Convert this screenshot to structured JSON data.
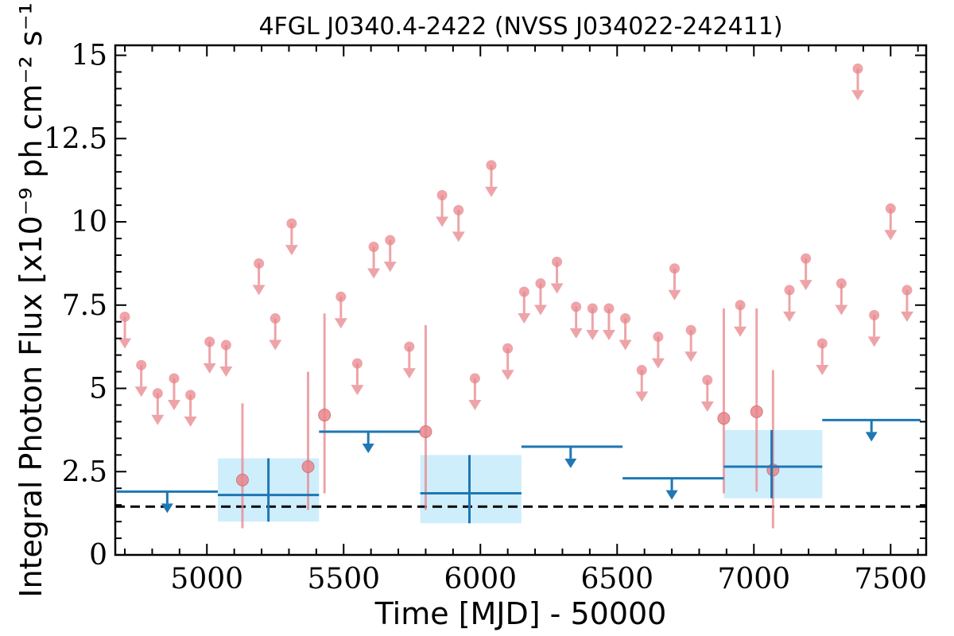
{
  "chart_data": {
    "type": "scatter",
    "title": "4FGL J0340.4-2422 (NVSS J034022-242411)",
    "xlabel": "Time [MJD] - 50000",
    "ylabel": "Integral Photon Flux [x10⁻⁹ ph cm⁻² s⁻¹]",
    "xlim": [
      4665,
      7630
    ],
    "ylim": [
      0,
      15.3
    ],
    "x_ticks": [
      5000,
      5500,
      6000,
      6500,
      7000,
      7500
    ],
    "x_tick_labels": [
      "5000",
      "5500",
      "6000",
      "6500",
      "7000",
      "7500"
    ],
    "y_ticks": [
      0,
      2.5,
      5,
      7.5,
      10,
      12.5,
      15
    ],
    "y_tick_labels": [
      "0",
      "2.5",
      "5",
      "7.5",
      "10",
      "12.5",
      "15"
    ],
    "grid": false,
    "reference_line": {
      "y": 1.45,
      "style": "dashed",
      "color": "#000000"
    },
    "colors": {
      "short_bins": "#e8868b",
      "long_bins": "#1f77b4",
      "error_band": "#cfeefc"
    },
    "series": [
      {
        "bin": "short",
        "upper_limits": [
          [
            4700,
            7.15
          ],
          [
            4760,
            5.7
          ],
          [
            4820,
            4.85
          ],
          [
            4880,
            5.3
          ],
          [
            4940,
            4.8
          ],
          [
            5010,
            6.4
          ],
          [
            5070,
            6.3
          ],
          [
            5190,
            8.75
          ],
          [
            5250,
            7.1
          ],
          [
            5310,
            9.95
          ],
          [
            5490,
            7.75
          ],
          [
            5550,
            5.75
          ],
          [
            5610,
            9.25
          ],
          [
            5670,
            9.45
          ],
          [
            5740,
            6.25
          ],
          [
            5860,
            10.8
          ],
          [
            5920,
            10.35
          ],
          [
            5980,
            5.3
          ],
          [
            6040,
            11.7
          ],
          [
            6100,
            6.2
          ],
          [
            6160,
            7.9
          ],
          [
            6220,
            8.15
          ],
          [
            6280,
            8.8
          ],
          [
            6350,
            7.45
          ],
          [
            6410,
            7.4
          ],
          [
            6470,
            7.4
          ],
          [
            6530,
            7.1
          ],
          [
            6590,
            5.55
          ],
          [
            6650,
            6.55
          ],
          [
            6710,
            8.6
          ],
          [
            6770,
            6.75
          ],
          [
            6830,
            5.25
          ],
          [
            6950,
            7.5
          ],
          [
            7130,
            7.95
          ],
          [
            7190,
            8.9
          ],
          [
            7250,
            6.35
          ],
          [
            7320,
            8.15
          ],
          [
            7380,
            14.6
          ],
          [
            7440,
            7.2
          ],
          [
            7500,
            10.4
          ],
          [
            7560,
            7.95
          ]
        ],
        "detections": [
          {
            "x": 5130,
            "y": 2.25,
            "ylow": 0.8,
            "yhigh": 4.55
          },
          {
            "x": 5370,
            "y": 2.65,
            "ylow": 1.35,
            "yhigh": 5.5
          },
          {
            "x": 5430,
            "y": 4.2,
            "ylow": 1.85,
            "yhigh": 7.25
          },
          {
            "x": 5800,
            "y": 3.7,
            "ylow": 1.35,
            "yhigh": 6.9
          },
          {
            "x": 6890,
            "y": 4.1,
            "ylow": 1.85,
            "yhigh": 7.4
          },
          {
            "x": 7010,
            "y": 4.3,
            "ylow": 1.9,
            "yhigh": 7.4
          },
          {
            "x": 7070,
            "y": 2.55,
            "ylow": 0.8,
            "yhigh": 5.55
          }
        ]
      },
      {
        "bin": "long",
        "upper_limits": [
          {
            "x": 4855,
            "xlow": 4670,
            "xhigh": 5040,
            "y": 1.9
          },
          {
            "x": 5590,
            "xlow": 5410,
            "xhigh": 5780,
            "y": 3.7
          },
          {
            "x": 6330,
            "xlow": 6150,
            "xhigh": 6520,
            "y": 3.25
          },
          {
            "x": 6700,
            "xlow": 6520,
            "xhigh": 6890,
            "y": 2.3
          },
          {
            "x": 7430,
            "xlow": 7250,
            "xhigh": 7610,
            "y": 4.05
          }
        ],
        "detections": [
          {
            "x": 5225,
            "xlow": 5040,
            "xhigh": 5410,
            "y": 1.8,
            "ylow": 1.0,
            "yhigh": 2.9
          },
          {
            "x": 5960,
            "xlow": 5780,
            "xhigh": 6150,
            "y": 1.85,
            "ylow": 0.95,
            "yhigh": 3.0
          },
          {
            "x": 7065,
            "xlow": 6890,
            "xhigh": 7250,
            "y": 2.65,
            "ylow": 1.7,
            "yhigh": 3.75
          }
        ]
      }
    ]
  }
}
